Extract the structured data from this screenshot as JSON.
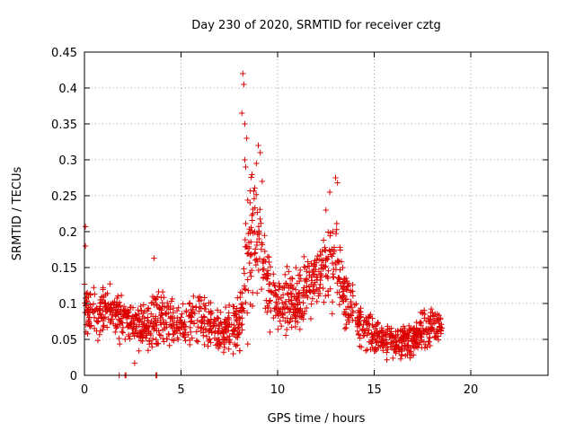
{
  "chart_data": {
    "type": "scatter",
    "title": "Day 230 of 2020, SRMTID for receiver cztg",
    "xlabel": "GPS time / hours",
    "ylabel": "SRMTID / TECUs",
    "xlim": [
      0,
      24
    ],
    "ylim": [
      0,
      0.45
    ],
    "xticks": [
      0,
      5,
      10,
      15,
      20
    ],
    "yticks": [
      0,
      0.05,
      0.1,
      0.15,
      0.2,
      0.25,
      0.3,
      0.35,
      0.4,
      0.45
    ],
    "grid": true,
    "marker": "+",
    "color": "#dd0000",
    "x_extent_hours": [
      0,
      18.5
    ],
    "series_profile": [
      {
        "t": 0.0,
        "base": 0.085,
        "spread": 0.03
      },
      {
        "t": 1.0,
        "base": 0.095,
        "spread": 0.03
      },
      {
        "t": 2.0,
        "base": 0.08,
        "spread": 0.03
      },
      {
        "t": 3.0,
        "base": 0.065,
        "spread": 0.025
      },
      {
        "t": 4.0,
        "base": 0.085,
        "spread": 0.03
      },
      {
        "t": 5.0,
        "base": 0.07,
        "spread": 0.025
      },
      {
        "t": 6.0,
        "base": 0.075,
        "spread": 0.03
      },
      {
        "t": 7.0,
        "base": 0.06,
        "spread": 0.025
      },
      {
        "t": 8.0,
        "base": 0.07,
        "spread": 0.03
      },
      {
        "t": 8.5,
        "base": 0.17,
        "spread": 0.08
      },
      {
        "t": 9.0,
        "base": 0.21,
        "spread": 0.07
      },
      {
        "t": 9.5,
        "base": 0.12,
        "spread": 0.04
      },
      {
        "t": 10.0,
        "base": 0.095,
        "spread": 0.035
      },
      {
        "t": 11.0,
        "base": 0.1,
        "spread": 0.035
      },
      {
        "t": 12.0,
        "base": 0.14,
        "spread": 0.04
      },
      {
        "t": 13.0,
        "base": 0.15,
        "spread": 0.05
      },
      {
        "t": 14.0,
        "base": 0.08,
        "spread": 0.03
      },
      {
        "t": 15.0,
        "base": 0.055,
        "spread": 0.02
      },
      {
        "t": 16.0,
        "base": 0.045,
        "spread": 0.018
      },
      {
        "t": 17.0,
        "base": 0.05,
        "spread": 0.02
      },
      {
        "t": 18.0,
        "base": 0.07,
        "spread": 0.025
      },
      {
        "t": 18.5,
        "base": 0.065,
        "spread": 0.02
      }
    ],
    "outliers": [
      {
        "x": 8.2,
        "y": 0.42
      },
      {
        "x": 8.25,
        "y": 0.405
      },
      {
        "x": 8.15,
        "y": 0.365
      },
      {
        "x": 8.3,
        "y": 0.35
      },
      {
        "x": 8.4,
        "y": 0.33
      },
      {
        "x": 9.0,
        "y": 0.32
      },
      {
        "x": 9.1,
        "y": 0.31
      },
      {
        "x": 8.9,
        "y": 0.295
      },
      {
        "x": 8.3,
        "y": 0.3
      },
      {
        "x": 8.35,
        "y": 0.29
      },
      {
        "x": 9.2,
        "y": 0.27
      },
      {
        "x": 13.0,
        "y": 0.275
      },
      {
        "x": 13.1,
        "y": 0.268
      },
      {
        "x": 12.7,
        "y": 0.255
      },
      {
        "x": 12.5,
        "y": 0.23
      },
      {
        "x": 0.05,
        "y": 0.207
      },
      {
        "x": 0.05,
        "y": 0.18
      },
      {
        "x": 3.6,
        "y": 0.163
      },
      {
        "x": 1.8,
        "y": 0.0
      },
      {
        "x": 2.1,
        "y": 0.0
      },
      {
        "x": 2.15,
        "y": 0.0
      },
      {
        "x": 3.7,
        "y": 0.0
      },
      {
        "x": 3.75,
        "y": 0.0
      },
      {
        "x": 2.6,
        "y": 0.017
      }
    ]
  }
}
